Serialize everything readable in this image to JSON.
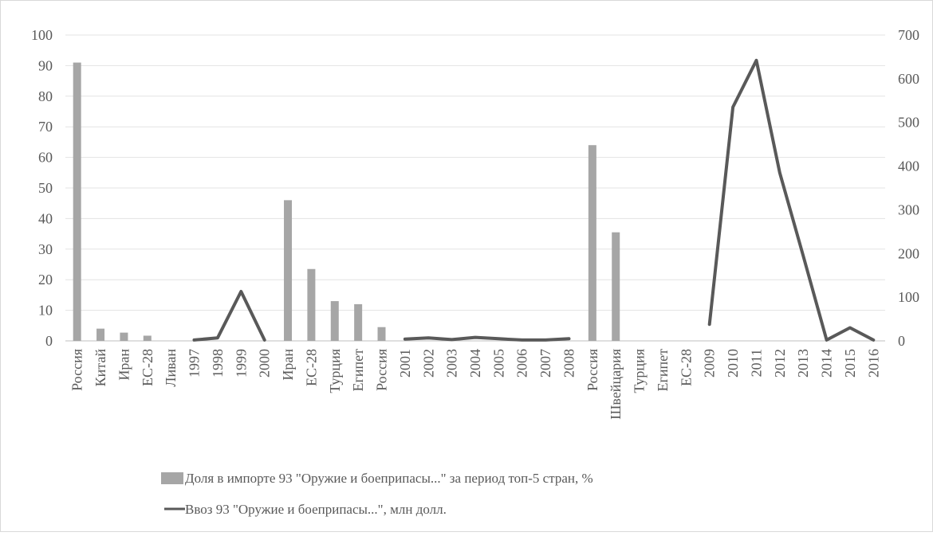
{
  "chart_data": {
    "type": "bar+line",
    "categories": [
      "Россия",
      "Китай",
      "Иран",
      "ЕС-28",
      "Ливан",
      "1997",
      "1998",
      "1999",
      "2000",
      "Иран",
      "ЕС-28",
      "Турция",
      "Египет",
      "Россия",
      "2001",
      "2002",
      "2003",
      "2004",
      "2005",
      "2006",
      "2007",
      "2008",
      "Россия",
      "Швейцария",
      "Турция",
      "Египет",
      "ЕС-28",
      "2009",
      "2010",
      "2011",
      "2012",
      "2013",
      "2014",
      "2015",
      "2016"
    ],
    "series": [
      {
        "name": "Доля  в импорте 93 \"Оружие и боеприпасы...\" за период топ-5  стран,  %",
        "type": "bar",
        "axis": "left",
        "color": "#a6a6a6",
        "values": [
          91,
          4,
          2.7,
          1.7,
          0,
          null,
          null,
          null,
          null,
          46,
          23.5,
          13,
          12,
          4.5,
          null,
          null,
          null,
          null,
          null,
          null,
          null,
          null,
          64,
          35.5,
          0,
          0,
          0,
          null,
          null,
          null,
          null,
          null,
          null,
          null,
          null
        ]
      },
      {
        "name": "Ввоз 93 \"Оружие и боеприпасы...\", млн долл.",
        "type": "line",
        "axis": "right",
        "color": "#595959",
        "values": [
          null,
          null,
          null,
          null,
          null,
          2,
          7,
          113,
          2,
          null,
          null,
          null,
          null,
          null,
          4,
          7,
          3,
          8,
          5,
          2,
          2,
          5,
          null,
          null,
          null,
          null,
          null,
          38,
          535,
          642,
          385,
          195,
          2,
          30,
          2
        ]
      }
    ],
    "y_left": {
      "min": 0,
      "max": 100,
      "step": 10
    },
    "y_right": {
      "min": 0,
      "max": 700,
      "step": 100
    },
    "grid": true,
    "legend": "bottom"
  }
}
